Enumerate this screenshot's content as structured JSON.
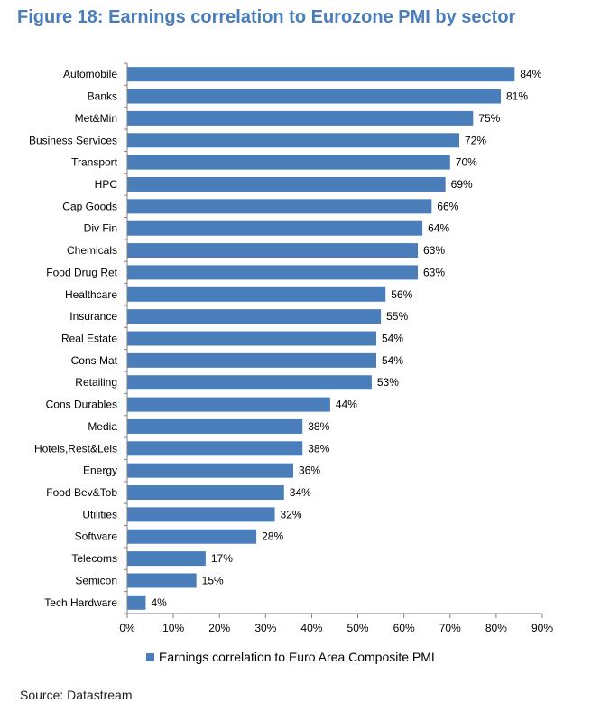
{
  "figure": {
    "title": "Figure 18: Earnings correlation to Eurozone PMI by sector",
    "source": "Source: Datastream"
  },
  "colors": {
    "title": "#4a7ebb",
    "bar": "#4a7ebb",
    "axis": "#7f7f7f"
  },
  "chart_data": {
    "type": "bar",
    "orientation": "horizontal",
    "title": "Figure 18: Earnings correlation to Eurozone PMI by sector",
    "xlabel": "",
    "ylabel": "",
    "xlim": [
      0,
      90
    ],
    "x_ticks": [
      0,
      10,
      20,
      30,
      40,
      50,
      60,
      70,
      80,
      90
    ],
    "x_tick_labels": [
      "0%",
      "10%",
      "20%",
      "30%",
      "40%",
      "50%",
      "60%",
      "70%",
      "80%",
      "90%"
    ],
    "grid": false,
    "legend_position": "bottom",
    "categories": [
      "Automobile",
      "Banks",
      "Met&Min",
      "Business Services",
      "Transport",
      "HPC",
      "Cap Goods",
      "Div Fin",
      "Chemicals",
      "Food Drug Ret",
      "Healthcare",
      "Insurance",
      "Real Estate",
      "Cons Mat",
      "Retailing",
      "Cons Durables",
      "Media",
      "Hotels,Rest&Leis",
      "Energy",
      "Food Bev&Tob",
      "Utilities",
      "Software",
      "Telecoms",
      "Semicon",
      "Tech Hardware"
    ],
    "series": [
      {
        "name": "Earnings correlation to Euro Area Composite PMI",
        "values": [
          84,
          81,
          75,
          72,
          70,
          69,
          66,
          64,
          63,
          63,
          56,
          55,
          54,
          54,
          53,
          44,
          38,
          38,
          36,
          34,
          32,
          28,
          17,
          15,
          4
        ],
        "labels": [
          "84%",
          "81%",
          "75%",
          "72%",
          "70%",
          "69%",
          "66%",
          "64%",
          "63%",
          "63%",
          "56%",
          "55%",
          "54%",
          "54%",
          "53%",
          "44%",
          "38%",
          "38%",
          "36%",
          "34%",
          "32%",
          "28%",
          "17%",
          "15%",
          "4%"
        ]
      }
    ]
  }
}
